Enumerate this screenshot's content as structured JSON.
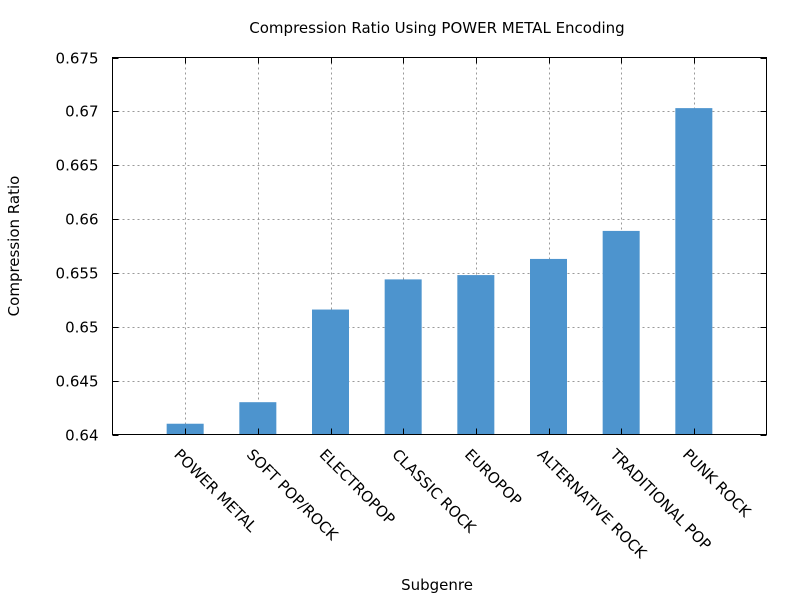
{
  "chart_data": {
    "type": "bar",
    "title": "Compression Ratio Using POWER METAL Encoding",
    "xlabel": "Subgenre",
    "ylabel": "Compression Ratio",
    "categories": [
      "POWER METAL",
      "SOFT POP/ROCK",
      "ELECTROPOP",
      "CLASSIC ROCK",
      "EUROPOP",
      "ALTERNATIVE ROCK",
      "TRADITIONAL POP",
      "PUNK ROCK"
    ],
    "values": [
      0.641,
      0.643,
      0.6516,
      0.6544,
      0.6548,
      0.6563,
      0.6589,
      0.6703
    ],
    "ylim": [
      0.64,
      0.675
    ],
    "yticks": [
      0.64,
      0.645,
      0.65,
      0.655,
      0.66,
      0.665,
      0.67,
      0.675
    ],
    "ytick_labels": [
      "0.64",
      "0.645",
      "0.65",
      "0.655",
      "0.66",
      "0.665",
      "0.67",
      "0.675"
    ],
    "grid": true,
    "bar_color": "#4d94ce"
  }
}
